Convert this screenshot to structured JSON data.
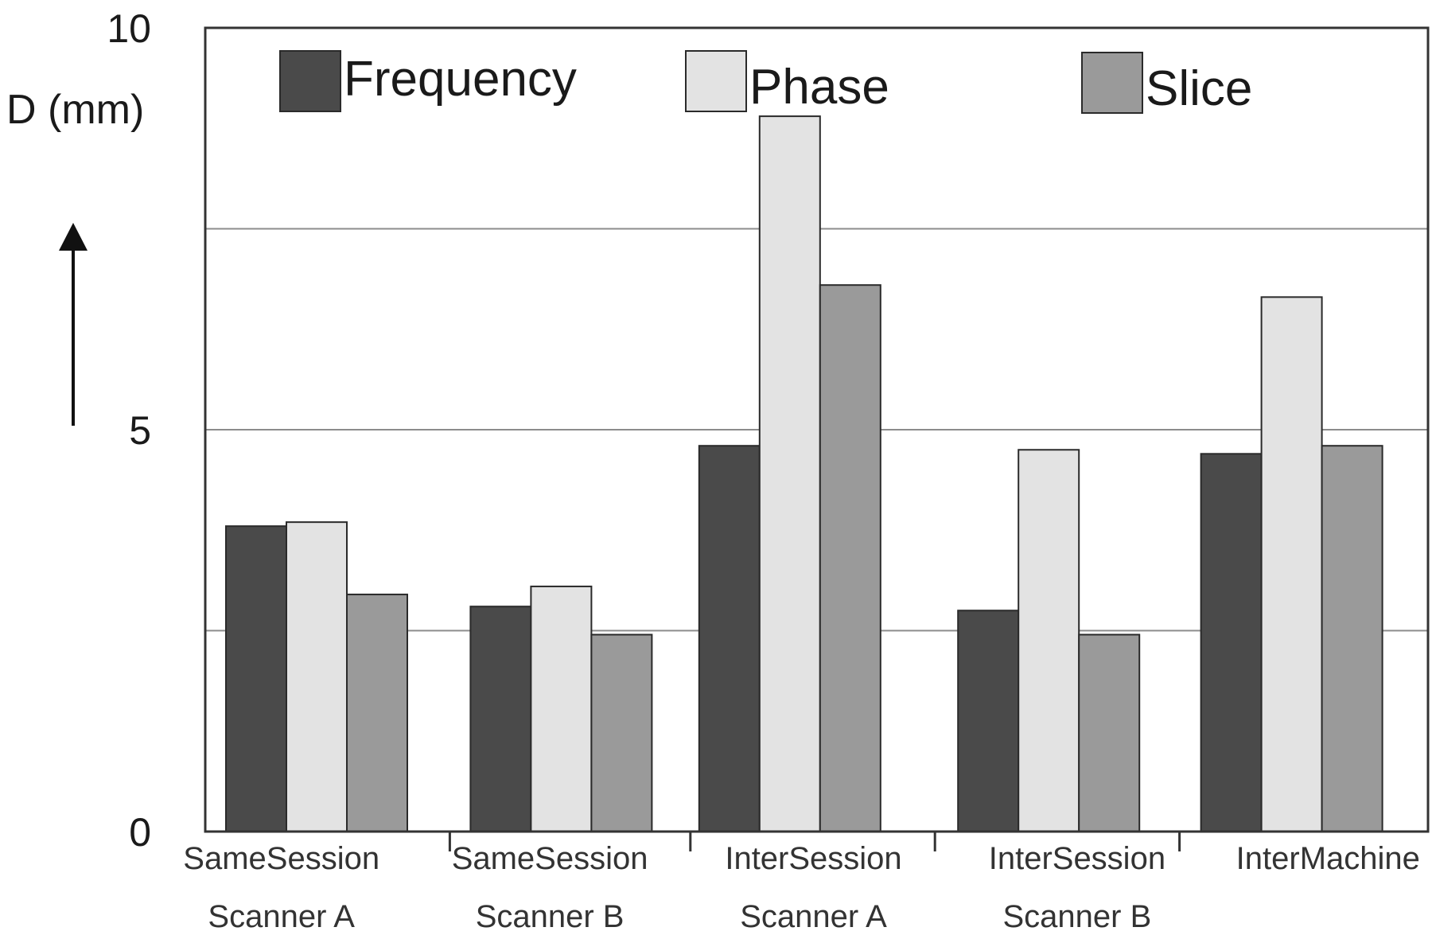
{
  "chart_data": {
    "type": "bar",
    "ylabel": "D (mm)",
    "ylim": [
      0,
      10
    ],
    "yticks": [
      "0",
      "5",
      "10"
    ],
    "gridlines": [
      2.5,
      5,
      7.5
    ],
    "grid": "horizontal",
    "legend_position": "top",
    "categories": [
      [
        "SameSession",
        "Scanner A"
      ],
      [
        "SameSession",
        "Scanner B"
      ],
      [
        "InterSession",
        "Scanner A"
      ],
      [
        "InterSession",
        "Scanner B"
      ],
      [
        "InterMachine",
        ""
      ]
    ],
    "series": [
      {
        "name": "Frequency",
        "color": "#4a4a4a",
        "values": [
          3.8,
          2.8,
          4.8,
          2.75,
          4.7
        ]
      },
      {
        "name": "Phase",
        "color": "#e3e3e3",
        "values": [
          3.85,
          3.05,
          8.9,
          4.75,
          6.65
        ]
      },
      {
        "name": "Slice",
        "color": "#9a9a9a",
        "values": [
          2.95,
          2.45,
          6.8,
          2.45,
          4.8
        ]
      }
    ]
  }
}
